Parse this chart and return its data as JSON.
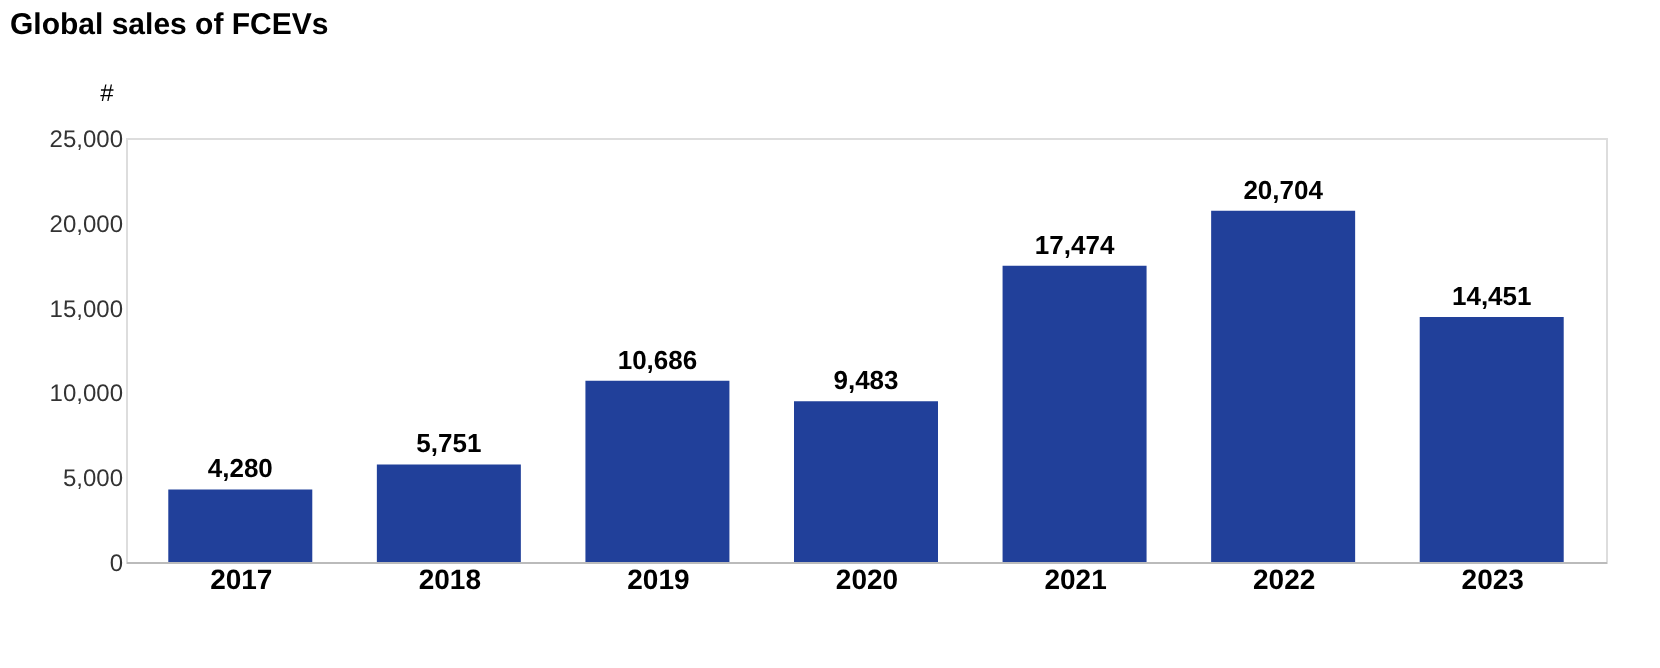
{
  "chart_data": {
    "type": "bar",
    "title": "Global sales of FCEVs",
    "ylabel": "#",
    "categories": [
      "2017",
      "2018",
      "2019",
      "2020",
      "2021",
      "2022",
      "2023"
    ],
    "values": [
      4280,
      5751,
      10686,
      9483,
      17474,
      20704,
      14451
    ],
    "value_labels": [
      "4,280",
      "5,751",
      "10,686",
      "9,483",
      "17,474",
      "20,704",
      "14,451"
    ],
    "color": "#21409a",
    "ylim": [
      0,
      25000
    ],
    "yticks": [
      0,
      {
        "value": 5000,
        "label": "5,000"
      },
      {
        "value": 10000,
        "label": "10,000"
      },
      {
        "value": 15000,
        "label": "15,000"
      },
      {
        "value": 20000,
        "label": "20,000"
      },
      {
        "value": 25000,
        "label": "25,000"
      }
    ],
    "grid": false
  }
}
